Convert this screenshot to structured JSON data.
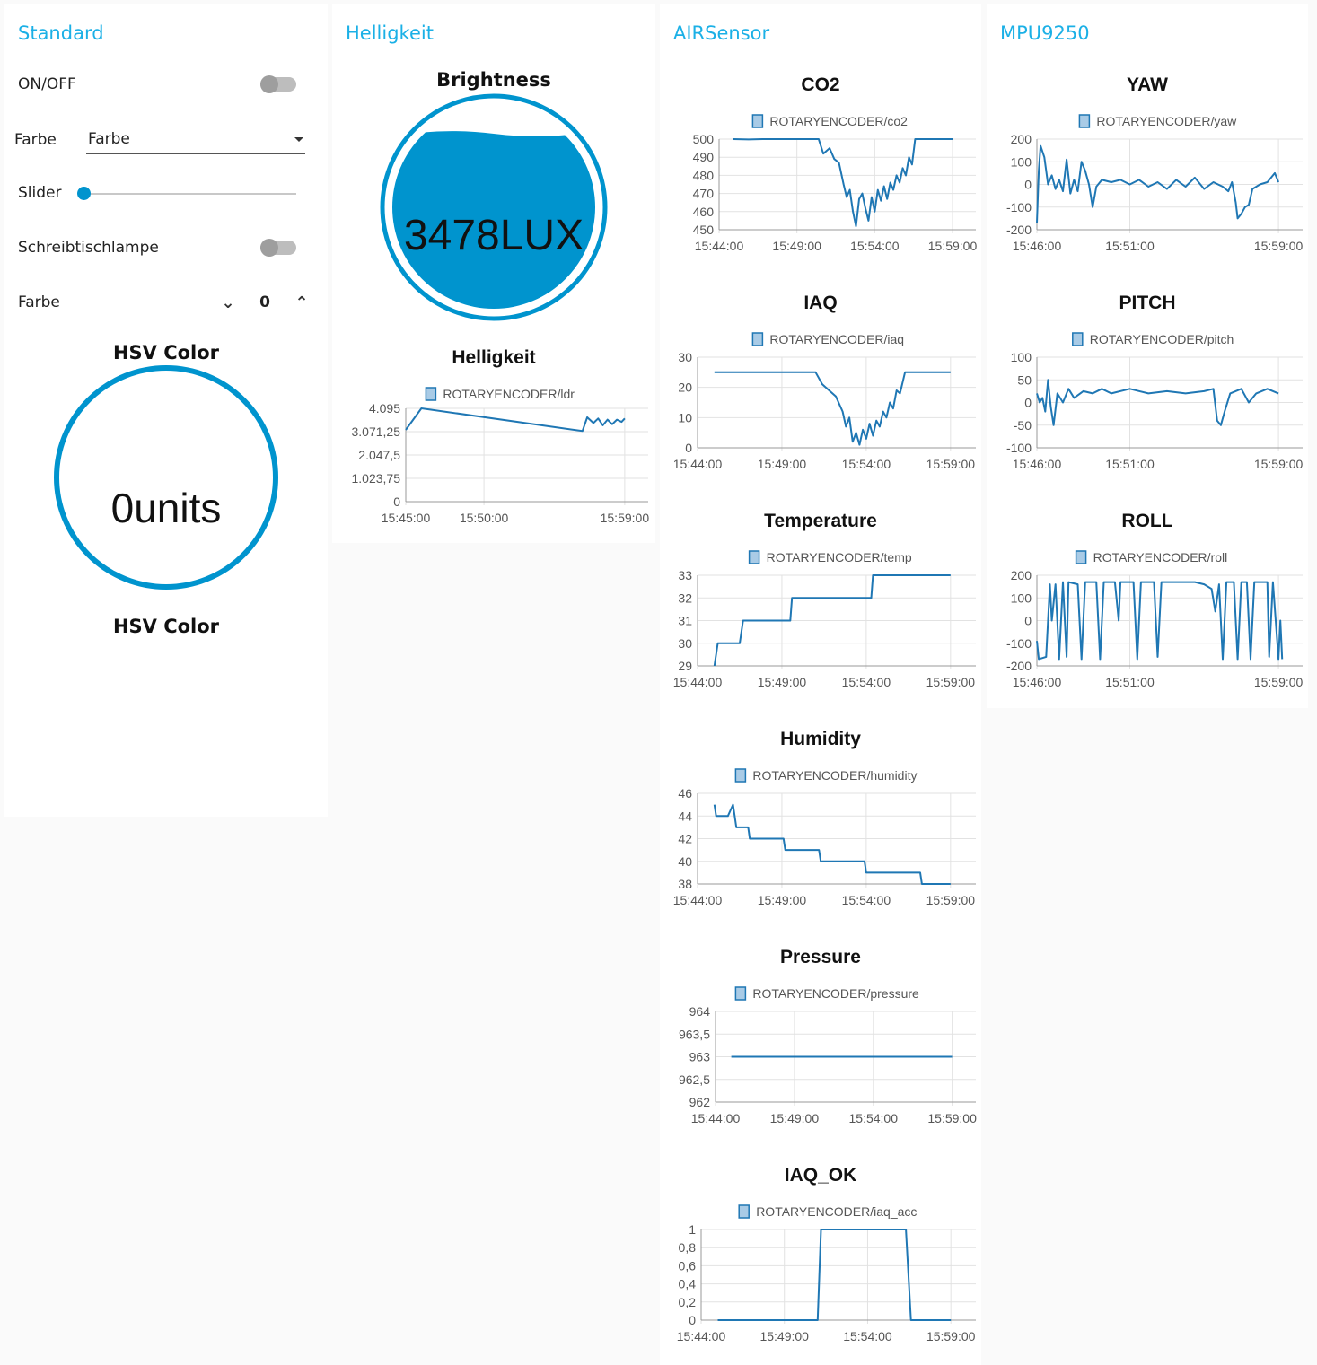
{
  "groups": {
    "standard": {
      "title": "Standard",
      "onoff_label": "ON/OFF",
      "farbe_label": "Farbe",
      "farbe_value": "Farbe",
      "slider_label": "Slider",
      "slider_value": 0,
      "lamp_label": "Schreibtischlampe",
      "farbe2_label": "Farbe",
      "farbe2_value": "0",
      "gauge_title": "HSV Color",
      "gauge_value": "0units",
      "gauge_footer": "HSV Color"
    },
    "helligkeit": {
      "title": "Helligkeit",
      "gauge_title": "Brightness",
      "gauge_value": "3478LUX"
    },
    "airsensor": {
      "title": "AIRSensor"
    },
    "mpu": {
      "title": "MPU9250"
    }
  },
  "colors": {
    "accent": "#1bb0e6",
    "line": "#1f77b4",
    "gauge_fill": "#0094ce"
  },
  "chart_data": [
    {
      "id": "ldr",
      "type": "line",
      "title": "Helligkeit",
      "legend": "ROTARYENCODER/ldr",
      "x_ticks": [
        "15:45:00",
        "15:50:00",
        "15:59:00"
      ],
      "x_tick_mins": [
        0,
        5,
        14
      ],
      "x_range": [
        0,
        15.5
      ],
      "y_ticks": [
        "4.095",
        "3.071,25",
        "2.047,5",
        "1.023,75",
        "0"
      ],
      "y_tick_vals": [
        4095,
        3071.25,
        2047.5,
        1023.75,
        0
      ],
      "ylim": [
        0,
        4095
      ],
      "points": [
        [
          0,
          3150
        ],
        [
          1,
          4095
        ],
        [
          11.3,
          3100
        ],
        [
          11.6,
          3700
        ],
        [
          12,
          3450
        ],
        [
          12.3,
          3650
        ],
        [
          12.6,
          3350
        ],
        [
          12.9,
          3600
        ],
        [
          13.2,
          3400
        ],
        [
          13.5,
          3600
        ],
        [
          13.8,
          3500
        ],
        [
          14,
          3650
        ]
      ]
    },
    {
      "id": "co2",
      "type": "line",
      "title": "CO2",
      "legend": "ROTARYENCODER/co2",
      "x_ticks": [
        "15:44:00",
        "15:49:00",
        "15:54:00",
        "15:59:00"
      ],
      "x_tick_mins": [
        0,
        5,
        10,
        15
      ],
      "x_range": [
        0,
        16.5
      ],
      "y_ticks": [
        "500",
        "490",
        "480",
        "470",
        "460",
        "450"
      ],
      "y_tick_vals": [
        500,
        490,
        480,
        470,
        460,
        450
      ],
      "ylim": [
        450,
        500
      ],
      "points": [
        [
          0.9,
          500
        ],
        [
          1.9,
          499.8
        ],
        [
          2.8,
          500
        ],
        [
          3.8,
          500
        ],
        [
          4.8,
          500
        ],
        [
          6.4,
          500
        ],
        [
          6.7,
          492
        ],
        [
          7.1,
          495
        ],
        [
          7.4,
          489
        ],
        [
          7.7,
          487
        ],
        [
          8,
          475
        ],
        [
          8.2,
          468
        ],
        [
          8.4,
          472
        ],
        [
          8.6,
          460
        ],
        [
          8.8,
          452
        ],
        [
          9,
          467
        ],
        [
          9.2,
          470
        ],
        [
          9.4,
          462
        ],
        [
          9.6,
          455
        ],
        [
          9.8,
          468
        ],
        [
          10,
          460
        ],
        [
          10.2,
          472
        ],
        [
          10.4,
          466
        ],
        [
          10.6,
          474
        ],
        [
          10.8,
          467
        ],
        [
          11,
          476
        ],
        [
          11.2,
          472
        ],
        [
          11.4,
          480
        ],
        [
          11.6,
          476
        ],
        [
          11.8,
          484
        ],
        [
          12,
          480
        ],
        [
          12.2,
          490
        ],
        [
          12.4,
          486
        ],
        [
          12.6,
          500
        ],
        [
          13.6,
          500
        ],
        [
          15,
          500
        ]
      ]
    },
    {
      "id": "iaq",
      "type": "line",
      "title": "IAQ",
      "legend": "ROTARYENCODER/iaq",
      "x_ticks": [
        "15:44:00",
        "15:49:00",
        "15:54:00",
        "15:59:00"
      ],
      "x_tick_mins": [
        0,
        5,
        10,
        15
      ],
      "x_range": [
        0,
        16.5
      ],
      "y_ticks": [
        "30",
        "20",
        "10",
        "0"
      ],
      "y_tick_vals": [
        30,
        20,
        10,
        0
      ],
      "ylim": [
        0,
        30
      ],
      "points": [
        [
          1,
          25
        ],
        [
          7,
          25
        ],
        [
          7.4,
          21
        ],
        [
          7.8,
          19
        ],
        [
          8.2,
          17
        ],
        [
          8.6,
          12
        ],
        [
          8.8,
          7
        ],
        [
          9,
          10
        ],
        [
          9.2,
          2
        ],
        [
          9.4,
          5
        ],
        [
          9.6,
          1
        ],
        [
          9.8,
          6
        ],
        [
          10,
          3
        ],
        [
          10.2,
          8
        ],
        [
          10.4,
          4
        ],
        [
          10.6,
          9
        ],
        [
          10.8,
          7
        ],
        [
          11,
          12
        ],
        [
          11.2,
          10
        ],
        [
          11.4,
          15
        ],
        [
          11.6,
          13
        ],
        [
          11.8,
          19
        ],
        [
          12,
          18
        ],
        [
          12.3,
          25
        ],
        [
          15,
          25
        ]
      ]
    },
    {
      "id": "temp",
      "type": "line",
      "title": "Temperature",
      "legend": "ROTARYENCODER/temp",
      "x_ticks": [
        "15:44:00",
        "15:49:00",
        "15:54:00",
        "15:59:00"
      ],
      "x_tick_mins": [
        0,
        5,
        10,
        15
      ],
      "x_range": [
        0,
        16.5
      ],
      "y_ticks": [
        "33",
        "32",
        "31",
        "30",
        "29"
      ],
      "y_tick_vals": [
        33,
        32,
        31,
        30,
        29
      ],
      "ylim": [
        29,
        33
      ],
      "points": [
        [
          1,
          29
        ],
        [
          1.2,
          30
        ],
        [
          2.5,
          30
        ],
        [
          2.7,
          31
        ],
        [
          5.5,
          31
        ],
        [
          5.6,
          32
        ],
        [
          10.3,
          32
        ],
        [
          10.4,
          33
        ],
        [
          15,
          33
        ]
      ]
    },
    {
      "id": "humidity",
      "type": "line",
      "title": "Humidity",
      "legend": "ROTARYENCODER/humidity",
      "x_ticks": [
        "15:44:00",
        "15:49:00",
        "15:54:00",
        "15:59:00"
      ],
      "x_tick_mins": [
        0,
        5,
        10,
        15
      ],
      "x_range": [
        0,
        16.5
      ],
      "y_ticks": [
        "46",
        "44",
        "42",
        "40",
        "38"
      ],
      "y_tick_vals": [
        46,
        44,
        42,
        40,
        38
      ],
      "ylim": [
        38,
        46
      ],
      "points": [
        [
          1,
          45
        ],
        [
          1.1,
          44
        ],
        [
          1.8,
          44
        ],
        [
          2.1,
          45
        ],
        [
          2.3,
          43
        ],
        [
          3,
          43
        ],
        [
          3.1,
          42
        ],
        [
          5.1,
          42
        ],
        [
          5.2,
          41
        ],
        [
          7.2,
          41
        ],
        [
          7.3,
          40
        ],
        [
          9.9,
          40
        ],
        [
          10,
          39
        ],
        [
          13.2,
          39
        ],
        [
          13.3,
          38
        ],
        [
          15,
          38
        ]
      ]
    },
    {
      "id": "pressure",
      "type": "line",
      "title": "Pressure",
      "legend": "ROTARYENCODER/pressure",
      "x_ticks": [
        "15:44:00",
        "15:49:00",
        "15:54:00",
        "15:59:00"
      ],
      "x_tick_mins": [
        0,
        5,
        10,
        15
      ],
      "x_range": [
        0,
        16.5
      ],
      "y_ticks": [
        "964",
        "963,5",
        "963",
        "962,5",
        "962"
      ],
      "y_tick_vals": [
        964,
        963.5,
        963,
        962.5,
        962
      ],
      "ylim": [
        962,
        964
      ],
      "points": [
        [
          1,
          963
        ],
        [
          15,
          963
        ]
      ]
    },
    {
      "id": "iaq_acc",
      "type": "line",
      "title": "IAQ_OK",
      "legend": "ROTARYENCODER/iaq_acc",
      "x_ticks": [
        "15:44:00",
        "15:49:00",
        "15:54:00",
        "15:59:00"
      ],
      "x_tick_mins": [
        0,
        5,
        10,
        15
      ],
      "x_range": [
        0,
        16.5
      ],
      "y_ticks": [
        "1",
        "0,8",
        "0,6",
        "0,4",
        "0,2",
        "0"
      ],
      "y_tick_vals": [
        1,
        0.8,
        0.6,
        0.4,
        0.2,
        0
      ],
      "ylim": [
        0,
        1
      ],
      "points": [
        [
          1,
          0
        ],
        [
          7,
          0
        ],
        [
          7.2,
          1
        ],
        [
          12.3,
          1
        ],
        [
          12.6,
          0
        ],
        [
          15,
          0
        ]
      ]
    },
    {
      "id": "yaw",
      "type": "line",
      "title": "YAW",
      "legend": "ROTARYENCODER/yaw",
      "x_ticks": [
        "15:46:00",
        "15:51:00",
        "15:59:00"
      ],
      "x_tick_mins": [
        0,
        5,
        13
      ],
      "x_range": [
        0,
        14.3
      ],
      "y_ticks": [
        "200",
        "100",
        "0",
        "-100",
        "-200"
      ],
      "y_tick_vals": [
        200,
        100,
        0,
        -100,
        -200
      ],
      "ylim": [
        -200,
        200
      ],
      "points": [
        [
          0,
          -170
        ],
        [
          0.1,
          60
        ],
        [
          0.2,
          170
        ],
        [
          0.4,
          120
        ],
        [
          0.6,
          0
        ],
        [
          0.8,
          40
        ],
        [
          1,
          -20
        ],
        [
          1.2,
          20
        ],
        [
          1.4,
          -30
        ],
        [
          1.6,
          110
        ],
        [
          1.8,
          -40
        ],
        [
          2,
          20
        ],
        [
          2.2,
          -30
        ],
        [
          2.4,
          100
        ],
        [
          2.6,
          60
        ],
        [
          2.8,
          0
        ],
        [
          3,
          -100
        ],
        [
          3.2,
          -10
        ],
        [
          3.5,
          20
        ],
        [
          4,
          10
        ],
        [
          4.5,
          20
        ],
        [
          5,
          0
        ],
        [
          5.5,
          20
        ],
        [
          6,
          -10
        ],
        [
          6.5,
          10
        ],
        [
          7,
          -20
        ],
        [
          7.5,
          20
        ],
        [
          8,
          -10
        ],
        [
          8.5,
          30
        ],
        [
          9,
          -20
        ],
        [
          9.5,
          10
        ],
        [
          10,
          -10
        ],
        [
          10.3,
          -30
        ],
        [
          10.5,
          10
        ],
        [
          10.7,
          -80
        ],
        [
          10.8,
          -150
        ],
        [
          11,
          -130
        ],
        [
          11.2,
          -100
        ],
        [
          11.4,
          -90
        ],
        [
          11.6,
          -20
        ],
        [
          12,
          0
        ],
        [
          12.4,
          10
        ],
        [
          12.8,
          50
        ],
        [
          13,
          10
        ]
      ]
    },
    {
      "id": "pitch",
      "type": "line",
      "title": "PITCH",
      "legend": "ROTARYENCODER/pitch",
      "x_ticks": [
        "15:46:00",
        "15:51:00",
        "15:59:00"
      ],
      "x_tick_mins": [
        0,
        5,
        13
      ],
      "x_range": [
        0,
        14.3
      ],
      "y_ticks": [
        "100",
        "50",
        "0",
        "-50",
        "-100"
      ],
      "y_tick_vals": [
        100,
        50,
        0,
        -50,
        -100
      ],
      "ylim": [
        -100,
        100
      ],
      "points": [
        [
          0,
          20
        ],
        [
          0.15,
          0
        ],
        [
          0.3,
          10
        ],
        [
          0.45,
          -20
        ],
        [
          0.6,
          50
        ],
        [
          0.75,
          -10
        ],
        [
          0.9,
          -50
        ],
        [
          1.1,
          20
        ],
        [
          1.4,
          0
        ],
        [
          1.7,
          30
        ],
        [
          2,
          10
        ],
        [
          2.5,
          25
        ],
        [
          3,
          20
        ],
        [
          3.5,
          30
        ],
        [
          4,
          20
        ],
        [
          5,
          30
        ],
        [
          6,
          20
        ],
        [
          7,
          25
        ],
        [
          8,
          20
        ],
        [
          9,
          25
        ],
        [
          9.5,
          30
        ],
        [
          9.7,
          -40
        ],
        [
          9.9,
          -50
        ],
        [
          10.1,
          -20
        ],
        [
          10.4,
          20
        ],
        [
          11,
          30
        ],
        [
          11.4,
          0
        ],
        [
          11.8,
          20
        ],
        [
          12.4,
          30
        ],
        [
          13,
          20
        ]
      ]
    },
    {
      "id": "roll",
      "type": "line",
      "title": "ROLL",
      "legend": "ROTARYENCODER/roll",
      "x_ticks": [
        "15:46:00",
        "15:51:00",
        "15:59:00"
      ],
      "x_tick_mins": [
        0,
        5,
        13
      ],
      "x_range": [
        0,
        14.3
      ],
      "y_ticks": [
        "200",
        "100",
        "0",
        "-100",
        "-200"
      ],
      "y_tick_vals": [
        200,
        100,
        0,
        -100,
        -200
      ],
      "ylim": [
        -200,
        200
      ],
      "points": [
        [
          0,
          -90
        ],
        [
          0.1,
          -170
        ],
        [
          0.5,
          -160
        ],
        [
          0.7,
          160
        ],
        [
          0.8,
          0
        ],
        [
          1,
          160
        ],
        [
          1.2,
          -170
        ],
        [
          1.4,
          170
        ],
        [
          1.6,
          -160
        ],
        [
          1.7,
          170
        ],
        [
          2.2,
          160
        ],
        [
          2.4,
          -170
        ],
        [
          2.6,
          170
        ],
        [
          3.2,
          170
        ],
        [
          3.4,
          -170
        ],
        [
          3.6,
          170
        ],
        [
          4.2,
          170
        ],
        [
          4.4,
          0
        ],
        [
          4.5,
          170
        ],
        [
          5.2,
          170
        ],
        [
          5.4,
          -170
        ],
        [
          5.6,
          170
        ],
        [
          6.3,
          170
        ],
        [
          6.5,
          -160
        ],
        [
          6.7,
          170
        ],
        [
          7.5,
          170
        ],
        [
          8.5,
          170
        ],
        [
          9,
          160
        ],
        [
          9.4,
          140
        ],
        [
          9.6,
          40
        ],
        [
          9.8,
          160
        ],
        [
          10,
          -170
        ],
        [
          10.2,
          170
        ],
        [
          10.6,
          170
        ],
        [
          10.8,
          -170
        ],
        [
          11,
          170
        ],
        [
          11.3,
          170
        ],
        [
          11.5,
          -170
        ],
        [
          11.7,
          170
        ],
        [
          12.4,
          170
        ],
        [
          12.5,
          -160
        ],
        [
          12.7,
          170
        ],
        [
          13,
          -170
        ],
        [
          13.1,
          0
        ],
        [
          13.2,
          -170
        ]
      ]
    }
  ]
}
